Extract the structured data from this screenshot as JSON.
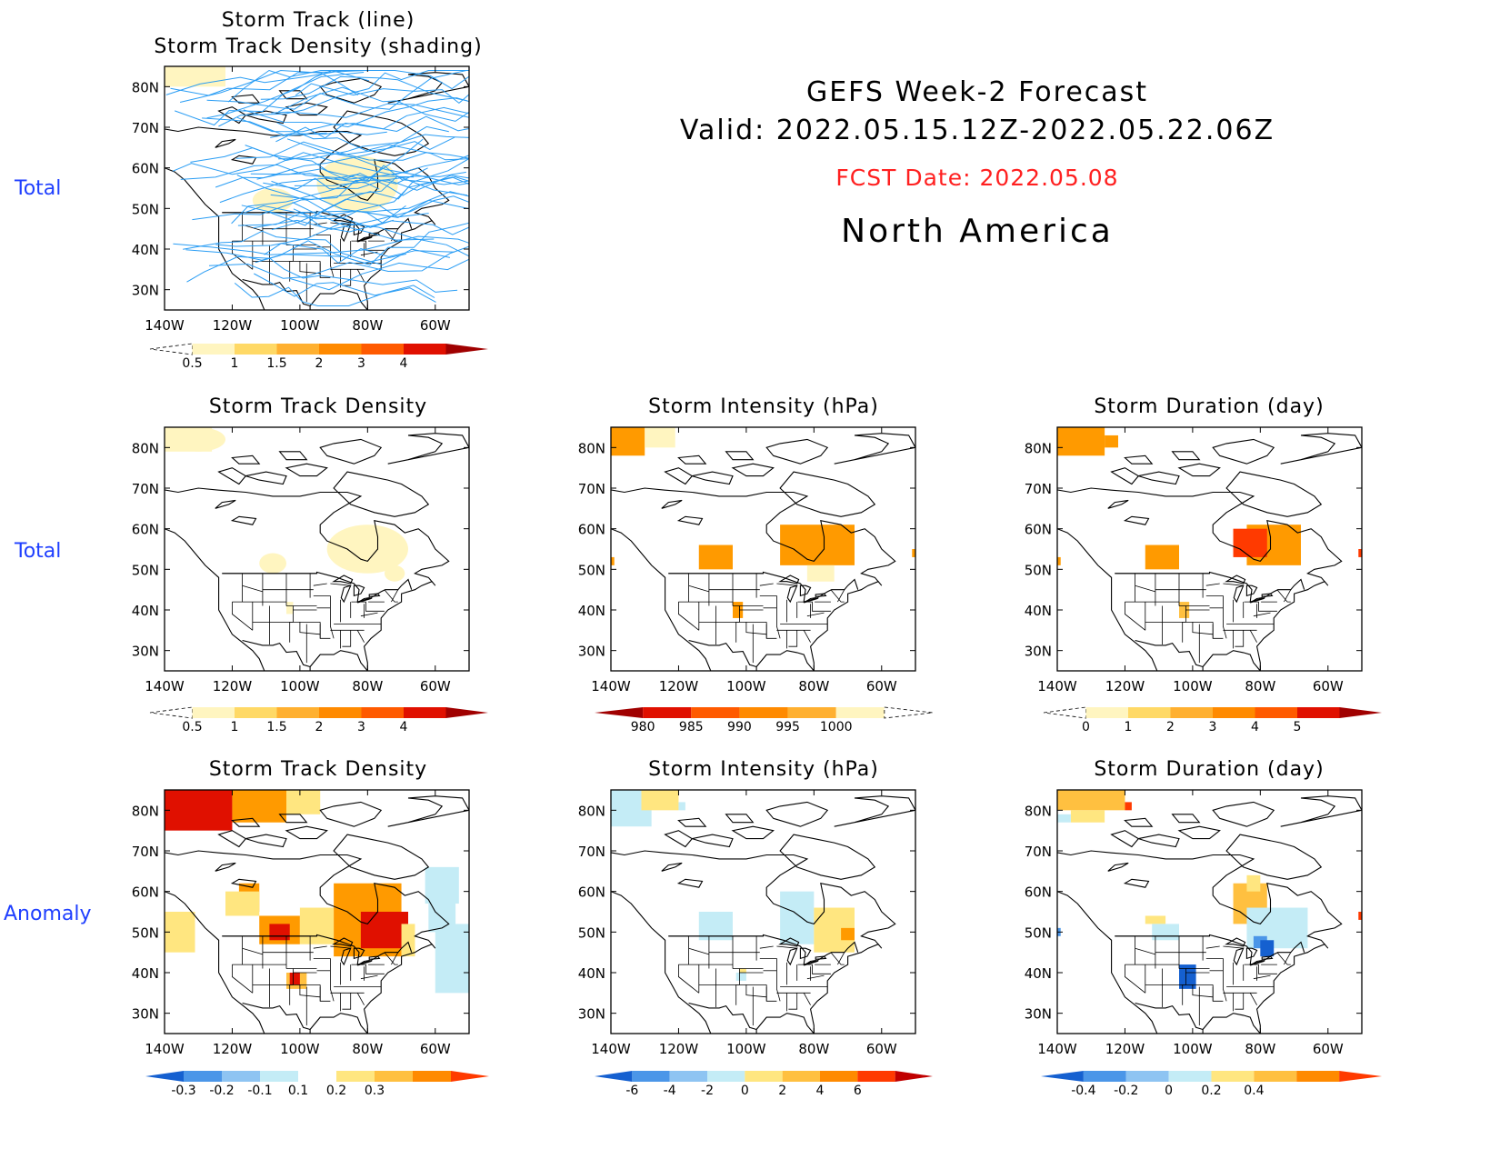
{
  "header": {
    "line1": "GEFS Week-2 Forecast",
    "line2": "Valid: 2022.05.15.12Z-2022.05.22.06Z",
    "fcst": "FCST Date: 2022.05.08",
    "region": "North America",
    "fcst_color": "#ff2020"
  },
  "row_labels": {
    "r1": "Total",
    "r2": "Total",
    "r3": "Anomaly"
  },
  "panel_titles": {
    "p1a": "Storm Track (line)",
    "p1b": "Storm Track Density (shading)",
    "p2": "Storm Track Density",
    "p3": "Storm Intensity (hPa)",
    "p4": "Storm Duration (day)",
    "p5": "Storm Track Density",
    "p6": "Storm Intensity (hPa)",
    "p7": "Storm Duration (day)"
  },
  "axes": {
    "lat_labels": [
      "80N",
      "70N",
      "60N",
      "50N",
      "40N",
      "30N"
    ],
    "lon_labels": [
      "140W",
      "120W",
      "100W",
      "80W",
      "60W"
    ]
  },
  "colorbars": {
    "density": {
      "labels": [
        "0.5",
        "1",
        "1.5",
        "2",
        "3",
        "4"
      ],
      "colors": [
        "#fff5c0",
        "#ffd966",
        "#ffb030",
        "#ff8a00",
        "#ff5a00",
        "#e01000",
        "#a00000"
      ]
    },
    "intensity": {
      "labels": [
        "980",
        "985",
        "990",
        "995",
        "1000"
      ],
      "colors": [
        "#a00000",
        "#e01000",
        "#ff5a00",
        "#ff8a00",
        "#ffb030",
        "#fff5c0"
      ]
    },
    "duration": {
      "labels": [
        "0",
        "1",
        "2",
        "3",
        "4",
        "5"
      ],
      "colors": [
        "#fff5c0",
        "#ffd966",
        "#ffb030",
        "#ff8a00",
        "#ff5a00",
        "#e01000",
        "#a00000"
      ]
    },
    "anom_density": {
      "labels": [
        "-0.3",
        "-0.2",
        "-0.1",
        "0.1",
        "0.2",
        "0.3"
      ],
      "colors": [
        "#1560d0",
        "#4b96e8",
        "#8ec4f2",
        "#c4ecf6",
        "#ffffff",
        "#ffe680",
        "#ffc040",
        "#ff8a00",
        "#ff3a00"
      ]
    },
    "anom_intensity": {
      "labels": [
        "-6",
        "-4",
        "-2",
        "0",
        "2",
        "4",
        "6"
      ],
      "colors": [
        "#1560d0",
        "#4b96e8",
        "#8ec4f2",
        "#c4ecf6",
        "#ffe680",
        "#ffc040",
        "#ff8a00",
        "#ff3a00",
        "#c00000"
      ]
    },
    "anom_duration": {
      "labels": [
        "-0.4",
        "-0.2",
        "0",
        "0.2",
        "0.4"
      ],
      "colors": [
        "#1560d0",
        "#4b96e8",
        "#8ec4f2",
        "#c4ecf6",
        "#ffe680",
        "#ffc040",
        "#ff8a00",
        "#ff3a00"
      ]
    }
  },
  "colors": {
    "track_line": "#2a9df4",
    "map_line": "#000000",
    "row_label": "#1f3fff"
  }
}
